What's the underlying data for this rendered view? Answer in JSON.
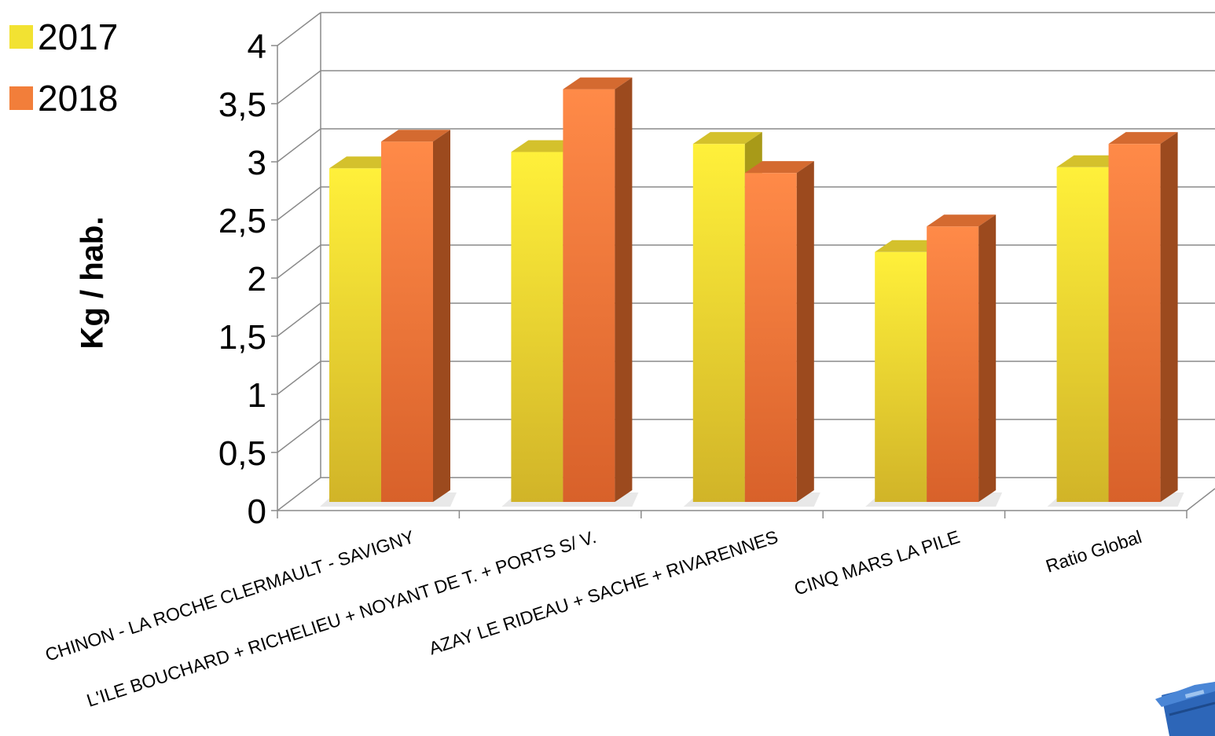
{
  "chart_data": {
    "type": "bar",
    "title": "",
    "xlabel": "",
    "ylabel": "Kg / hab.",
    "ylim": [
      0,
      4
    ],
    "yticks": [
      "0",
      "0,5",
      "1",
      "1,5",
      "2",
      "2,5",
      "3",
      "3,5",
      "4"
    ],
    "categories": [
      "CHINON - LA ROCHE CLERMAULT - SAVIGNY",
      "L'ILE BOUCHARD + RICHELIEU + NOYANT DE T. + PORTS S/ V.",
      "AZAY LE RIDEAU + SACHE + RIVARENNES",
      "CINQ MARS LA PILE",
      "Ratio Global"
    ],
    "series": [
      {
        "name": "2017",
        "values": [
          2.87,
          3.01,
          3.08,
          2.15,
          2.88
        ]
      },
      {
        "name": "2018",
        "values": [
          3.1,
          3.55,
          2.83,
          2.37,
          3.08
        ]
      }
    ],
    "grid": true,
    "legend_position": "top-left",
    "colors": {
      "2017": "#f2e232",
      "2018": "#f27e3a"
    }
  },
  "decor": {
    "corner_icon": "recycling-bin-icon"
  }
}
